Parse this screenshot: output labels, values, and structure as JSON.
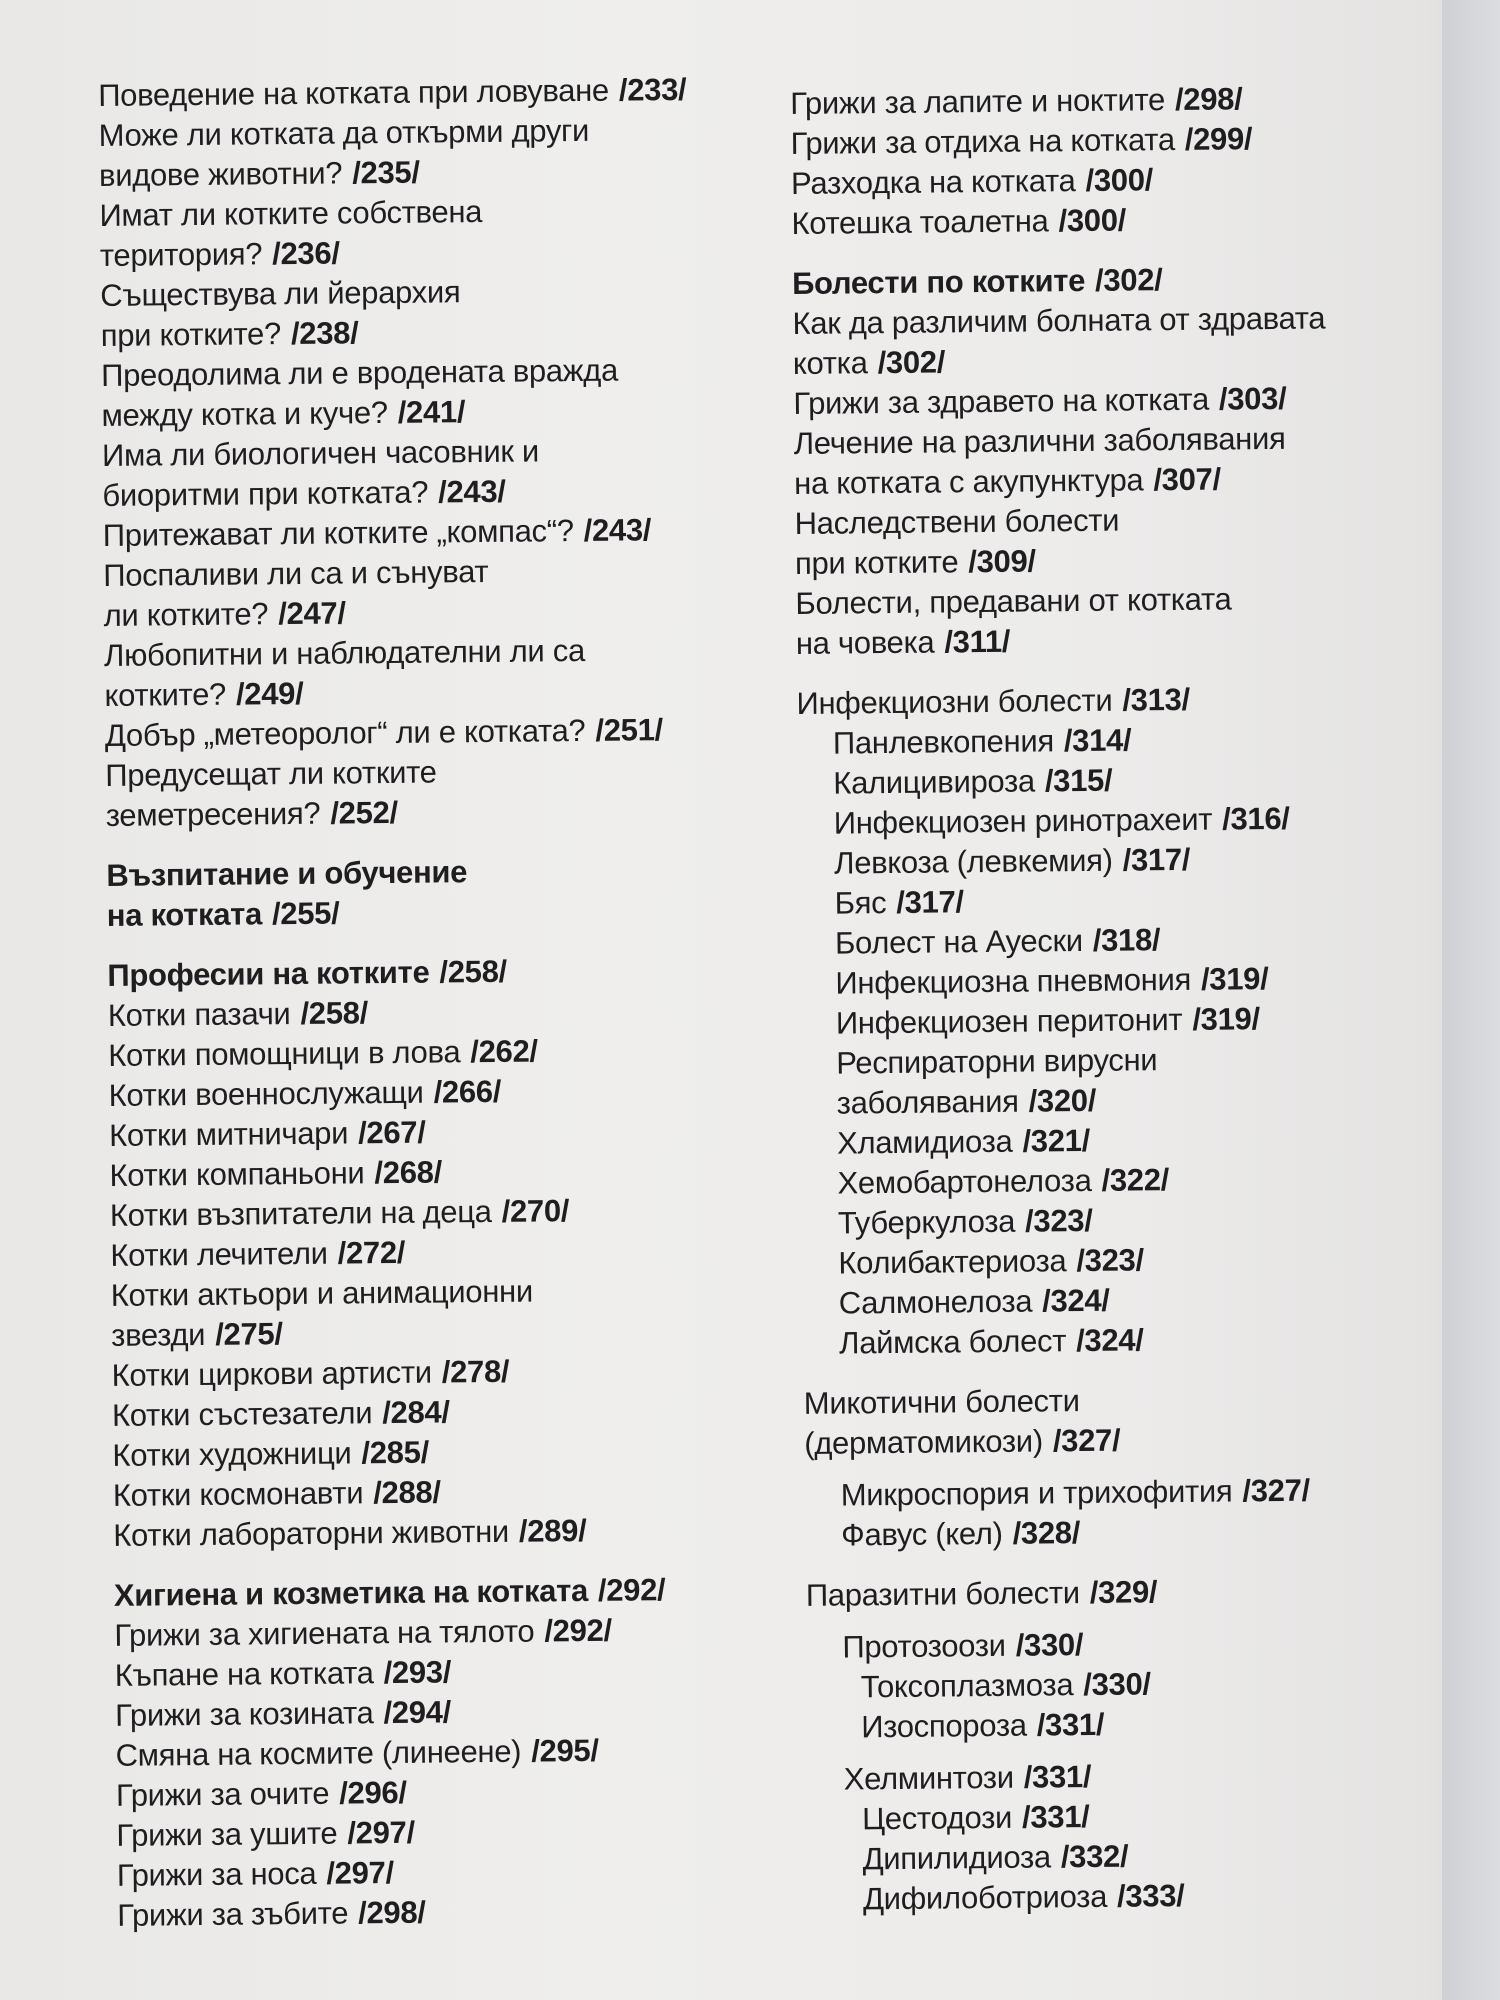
{
  "left": [
    {
      "type": "item",
      "lines": [
        "Поведение на котката при ловуване"
      ],
      "page": "/233/"
    },
    {
      "type": "item",
      "lines": [
        "Може ли котката да откърми други",
        "видове животни?"
      ],
      "page": "/235/"
    },
    {
      "type": "item",
      "lines": [
        "Имат ли котките собствена",
        "територия?"
      ],
      "page": "/236/"
    },
    {
      "type": "item",
      "lines": [
        "Съществува ли йерархия",
        "при котките?"
      ],
      "page": "/238/"
    },
    {
      "type": "item",
      "lines": [
        "Преодолима ли е вродената вражда",
        "между котка и куче?"
      ],
      "page": "/241/"
    },
    {
      "type": "item",
      "lines": [
        "Има ли биологичен часовник и",
        "биоритми при котката?"
      ],
      "page": "/243/"
    },
    {
      "type": "item",
      "lines": [
        "Притежават ли котките „компас“?"
      ],
      "page": "/243/"
    },
    {
      "type": "item",
      "lines": [
        "Поспаливи ли са и сънуват",
        "ли котките?"
      ],
      "page": "/247/"
    },
    {
      "type": "item",
      "lines": [
        "Любопитни и наблюдателни ли са",
        "котките?"
      ],
      "page": "/249/"
    },
    {
      "type": "item",
      "lines": [
        "Добър „метеоролог“ ли е котката?"
      ],
      "page": "/251/"
    },
    {
      "type": "item",
      "lines": [
        "Предусещат ли котките",
        "земетресения?"
      ],
      "page": "/252/"
    },
    {
      "type": "section",
      "lines": [
        "Възпитание и обучение",
        "на котката"
      ],
      "page": "/255/"
    },
    {
      "type": "section",
      "lines": [
        "Професии на котките"
      ],
      "page": "/258/"
    },
    {
      "type": "item",
      "lines": [
        "Котки пазачи"
      ],
      "page": "/258/"
    },
    {
      "type": "item",
      "lines": [
        "Котки помощници в лова"
      ],
      "page": "/262/"
    },
    {
      "type": "item",
      "lines": [
        "Котки военнослужащи"
      ],
      "page": "/266/"
    },
    {
      "type": "item",
      "lines": [
        "Котки митничари"
      ],
      "page": "/267/"
    },
    {
      "type": "item",
      "lines": [
        "Котки компаньони"
      ],
      "page": "/268/"
    },
    {
      "type": "item",
      "lines": [
        "Котки възпитатели на деца"
      ],
      "page": "/270/"
    },
    {
      "type": "item",
      "lines": [
        "Котки лечители"
      ],
      "page": "/272/"
    },
    {
      "type": "item",
      "lines": [
        "Котки актьори и анимационни",
        "звезди"
      ],
      "page": "/275/"
    },
    {
      "type": "item",
      "lines": [
        "Котки циркови артисти"
      ],
      "page": "/278/"
    },
    {
      "type": "item",
      "lines": [
        "Котки състезатели"
      ],
      "page": "/284/"
    },
    {
      "type": "item",
      "lines": [
        "Котки художници"
      ],
      "page": "/285/"
    },
    {
      "type": "item",
      "lines": [
        "Котки космонавти"
      ],
      "page": "/288/"
    },
    {
      "type": "item",
      "lines": [
        "Котки лабораторни животни"
      ],
      "page": "/289/"
    },
    {
      "type": "section",
      "lines": [
        "Хигиена и козметика на котката"
      ],
      "page": "/292/"
    },
    {
      "type": "item",
      "lines": [
        "Грижи за хигиената на тялото"
      ],
      "page": "/292/"
    },
    {
      "type": "item",
      "lines": [
        "Къпане на котката"
      ],
      "page": "/293/"
    },
    {
      "type": "item",
      "lines": [
        "Грижи за козината"
      ],
      "page": "/294/"
    },
    {
      "type": "item",
      "lines": [
        "Смяна на космите (линеене)"
      ],
      "page": "/295/"
    },
    {
      "type": "item",
      "lines": [
        "Грижи за очите"
      ],
      "page": "/296/"
    },
    {
      "type": "item",
      "lines": [
        "Грижи за ушите"
      ],
      "page": "/297/"
    },
    {
      "type": "item",
      "lines": [
        "Грижи за носа"
      ],
      "page": "/297/"
    },
    {
      "type": "item",
      "lines": [
        "Грижи за зъбите"
      ],
      "page": "/298/"
    }
  ],
  "right": [
    {
      "type": "item",
      "lines": [
        "Грижи за лапите и ноктите"
      ],
      "page": "/298/"
    },
    {
      "type": "item",
      "lines": [
        "Грижи за отдиха на котката"
      ],
      "page": "/299/"
    },
    {
      "type": "item",
      "lines": [
        "Разходка на котката"
      ],
      "page": "/300/"
    },
    {
      "type": "item",
      "lines": [
        "Котешка тоалетна"
      ],
      "page": "/300/"
    },
    {
      "type": "section",
      "lines": [
        "Болести по котките"
      ],
      "page": "/302/"
    },
    {
      "type": "item",
      "lines": [
        "Как да различим болната от здравата",
        "котка"
      ],
      "page": "/302/"
    },
    {
      "type": "item",
      "lines": [
        "Грижи за здравето на котката"
      ],
      "page": "/303/"
    },
    {
      "type": "item",
      "lines": [
        "Лечение на различни заболявания",
        "на котката с акупунктура"
      ],
      "page": "/307/"
    },
    {
      "type": "item",
      "lines": [
        "Наследствени болести",
        "при котките"
      ],
      "page": "/309/"
    },
    {
      "type": "item",
      "lines": [
        "Болести, предавани от котката",
        "на човека"
      ],
      "page": "/311/"
    },
    {
      "type": "group",
      "lines": [
        "Инфекциозни болести"
      ],
      "page": "/313/"
    },
    {
      "type": "sub",
      "lines": [
        "Панлевкопения"
      ],
      "page": "/314/"
    },
    {
      "type": "sub",
      "lines": [
        "Калицивироза"
      ],
      "page": "/315/"
    },
    {
      "type": "sub",
      "lines": [
        "Инфекциозен ринотрахеит"
      ],
      "page": "/316/"
    },
    {
      "type": "sub",
      "lines": [
        "Левкоза (левкемия)"
      ],
      "page": "/317/"
    },
    {
      "type": "sub",
      "lines": [
        "Бяс"
      ],
      "page": "/317/"
    },
    {
      "type": "sub",
      "lines": [
        "Болест на Ауески"
      ],
      "page": "/318/"
    },
    {
      "type": "sub",
      "lines": [
        "Инфекциозна пневмония"
      ],
      "page": "/319/"
    },
    {
      "type": "sub",
      "lines": [
        "Инфекциозен перитонит"
      ],
      "page": "/319/"
    },
    {
      "type": "sub",
      "lines": [
        "Респираторни вирусни",
        "заболявания"
      ],
      "page": "/320/"
    },
    {
      "type": "sub",
      "lines": [
        "Хламидиоза"
      ],
      "page": "/321/"
    },
    {
      "type": "sub",
      "lines": [
        "Хемобартонелоза"
      ],
      "page": "/322/"
    },
    {
      "type": "sub",
      "lines": [
        "Туберкулоза"
      ],
      "page": "/323/"
    },
    {
      "type": "sub",
      "lines": [
        "Колибактериоза"
      ],
      "page": "/323/"
    },
    {
      "type": "sub",
      "lines": [
        "Салмонелоза"
      ],
      "page": "/324/"
    },
    {
      "type": "sub",
      "lines": [
        "Лаймска болест"
      ],
      "page": "/324/"
    },
    {
      "type": "group",
      "lines": [
        "Микотични болести",
        "(дерматомикози)"
      ],
      "page": "/327/"
    },
    {
      "type": "sub",
      "lines": [
        "Микроспория и трихофития"
      ],
      "page": "/327/"
    },
    {
      "type": "sub",
      "lines": [
        "Фавус (кел)"
      ],
      "page": "/328/"
    },
    {
      "type": "group",
      "lines": [
        "Паразитни болести"
      ],
      "page": "/329/"
    },
    {
      "type": "sub",
      "lines": [
        "Протозоози"
      ],
      "page": "/330/"
    },
    {
      "type": "sub2",
      "lines": [
        "Токсоплазмоза"
      ],
      "page": "/330/"
    },
    {
      "type": "sub2",
      "lines": [
        "Изоспороза"
      ],
      "page": "/331/"
    },
    {
      "type": "sub",
      "lines": [
        "Хелминтози"
      ],
      "page": "/331/"
    },
    {
      "type": "sub2",
      "lines": [
        "Цестодози"
      ],
      "page": "/331/"
    },
    {
      "type": "sub2",
      "lines": [
        "Дипилидиоза"
      ],
      "page": "/332/"
    },
    {
      "type": "sub2",
      "lines": [
        "Дифилоботриоза"
      ],
      "page": "/333/"
    }
  ]
}
